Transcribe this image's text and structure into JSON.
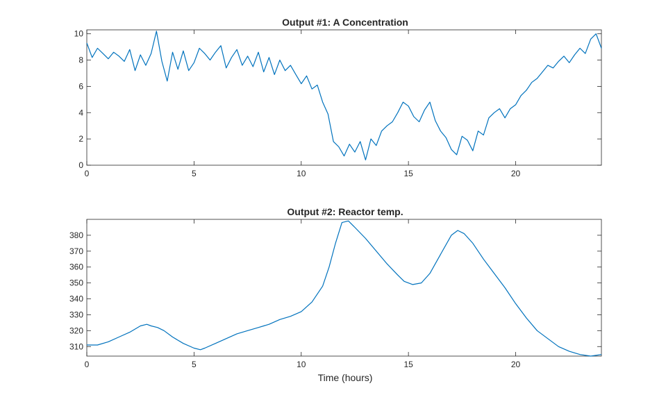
{
  "chart_data": [
    {
      "type": "line",
      "title": "Output #1: A Concentration",
      "xlabel": "",
      "ylabel": "",
      "xlim": [
        0,
        24
      ],
      "ylim": [
        0,
        10.3
      ],
      "xticks": [
        0,
        5,
        10,
        15,
        20
      ],
      "yticks": [
        0,
        2,
        4,
        6,
        8,
        10
      ],
      "xtick_labels": [
        "0",
        "5",
        "10",
        "15",
        "20"
      ],
      "ytick_labels": [
        "0",
        "2",
        "4",
        "6",
        "8",
        "10"
      ],
      "grid": false,
      "color": "#0072BD",
      "series": [
        {
          "x": [
            0,
            0.25,
            0.5,
            0.75,
            1,
            1.25,
            1.5,
            1.75,
            2,
            2.25,
            2.5,
            2.75,
            3,
            3.25,
            3.5,
            3.75,
            4,
            4.25,
            4.5,
            4.75,
            5,
            5.25,
            5.5,
            5.75,
            6,
            6.25,
            6.5,
            6.75,
            7,
            7.25,
            7.5,
            7.75,
            8,
            8.25,
            8.5,
            8.75,
            9,
            9.25,
            9.5,
            9.75,
            10,
            10.25,
            10.5,
            10.75,
            11,
            11.25,
            11.5,
            11.75,
            12,
            12.25,
            12.5,
            12.75,
            13,
            13.25,
            13.5,
            13.75,
            14,
            14.25,
            14.5,
            14.75,
            15,
            15.25,
            15.5,
            15.75,
            16,
            16.25,
            16.5,
            16.75,
            17,
            17.25,
            17.5,
            17.75,
            18,
            18.25,
            18.5,
            18.75,
            19,
            19.25,
            19.5,
            19.75,
            20,
            20.25,
            20.5,
            20.75,
            21,
            21.25,
            21.5,
            21.75,
            22,
            22.25,
            22.5,
            22.75,
            23,
            23.25,
            23.5,
            23.75,
            24
          ],
          "y": [
            9.3,
            8.2,
            8.9,
            8.5,
            8.1,
            8.6,
            8.3,
            7.9,
            8.8,
            7.2,
            8.4,
            7.6,
            8.5,
            10.2,
            7.9,
            6.4,
            8.6,
            7.3,
            8.7,
            7.2,
            7.8,
            8.9,
            8.5,
            8.0,
            8.6,
            9.1,
            7.4,
            8.2,
            8.8,
            7.6,
            8.3,
            7.5,
            8.6,
            7.1,
            8.2,
            6.9,
            8.0,
            7.2,
            7.6,
            6.9,
            6.2,
            6.8,
            5.8,
            6.1,
            4.8,
            3.9,
            1.8,
            1.4,
            0.7,
            1.6,
            1.0,
            1.8,
            0.4,
            2.0,
            1.5,
            2.6,
            3.0,
            3.3,
            4.0,
            4.8,
            4.5,
            3.7,
            3.3,
            4.2,
            4.8,
            3.4,
            2.6,
            2.1,
            1.2,
            0.8,
            2.2,
            1.9,
            1.1,
            2.6,
            2.3,
            3.6,
            4.0,
            4.3,
            3.6,
            4.3,
            4.6,
            5.3,
            5.7,
            6.3,
            6.6,
            7.1,
            7.6,
            7.4,
            7.9,
            8.3,
            7.8,
            8.4,
            8.9,
            8.5,
            9.6,
            10.0,
            8.9
          ]
        }
      ]
    },
    {
      "type": "line",
      "title": "Output #2: Reactor temp.",
      "xlabel": "Time (hours)",
      "ylabel": "",
      "xlim": [
        0,
        24
      ],
      "ylim": [
        304,
        390
      ],
      "xticks": [
        0,
        5,
        10,
        15,
        20
      ],
      "yticks": [
        310,
        320,
        330,
        340,
        350,
        360,
        370,
        380
      ],
      "xtick_labels": [
        "0",
        "5",
        "10",
        "15",
        "20"
      ],
      "ytick_labels": [
        "310",
        "320",
        "330",
        "340",
        "350",
        "360",
        "370",
        "380"
      ],
      "grid": false,
      "color": "#0072BD",
      "series": [
        {
          "x": [
            0,
            0.5,
            1,
            1.5,
            2,
            2.5,
            2.8,
            3,
            3.3,
            3.6,
            4,
            4.5,
            5,
            5.3,
            5.5,
            6,
            6.5,
            7,
            7.5,
            8,
            8.5,
            9,
            9.5,
            10,
            10.5,
            11,
            11.3,
            11.6,
            11.9,
            12.2,
            12.5,
            13,
            13.5,
            14,
            14.5,
            14.8,
            15.2,
            15.6,
            16,
            16.5,
            17,
            17.3,
            17.6,
            18,
            18.5,
            19,
            19.5,
            20,
            20.5,
            21,
            21.5,
            22,
            22.5,
            23,
            23.5,
            24
          ],
          "y": [
            311,
            311,
            313,
            316,
            319,
            323,
            324,
            323,
            322,
            320,
            316,
            312,
            309,
            308,
            309,
            312,
            315,
            318,
            320,
            322,
            324,
            327,
            329,
            332,
            338,
            348,
            360,
            375,
            388,
            389,
            385,
            378,
            370,
            362,
            355,
            351,
            349,
            350,
            356,
            368,
            380,
            383,
            381,
            375,
            365,
            356,
            347,
            337,
            328,
            320,
            315,
            310,
            307,
            305,
            304,
            305
          ]
        }
      ]
    }
  ]
}
